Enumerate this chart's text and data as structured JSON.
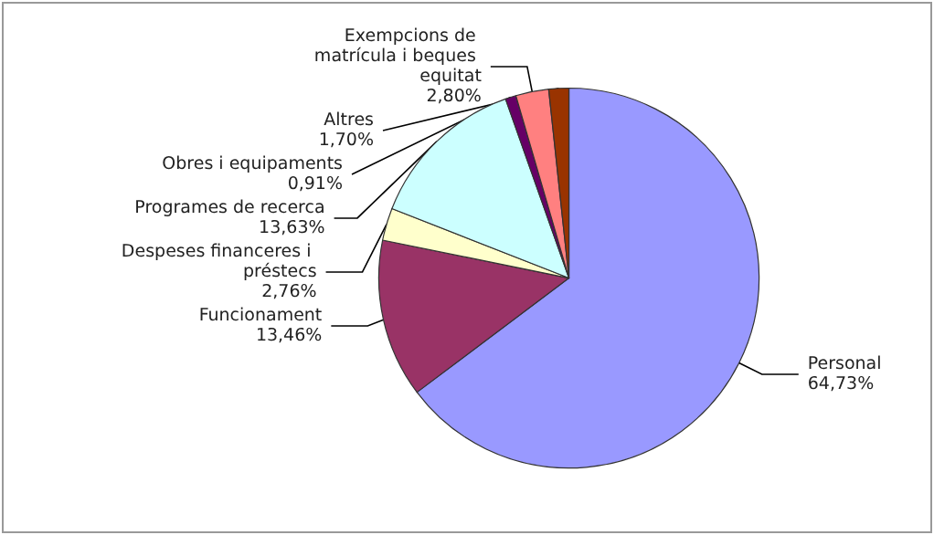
{
  "chart_data": {
    "type": "pie",
    "categories": [
      "Personal",
      "Funcionament",
      "Despeses financeres i préstecs",
      "Programes de recerca",
      "Obres i equipaments",
      "Exempcions de matrícula i beques equitat",
      "Altres"
    ],
    "values": [
      64.73,
      13.46,
      2.76,
      13.63,
      0.91,
      2.8,
      1.7
    ],
    "value_labels": [
      "64,73%",
      "13,46%",
      "2,76%",
      "13,63%",
      "0,91%",
      "2,80%",
      "1,70%"
    ],
    "colors": [
      "#9999ff",
      "#993366",
      "#ffffcc",
      "#ccffff",
      "#660066",
      "#ff8080",
      "#993300"
    ],
    "legend": false
  }
}
